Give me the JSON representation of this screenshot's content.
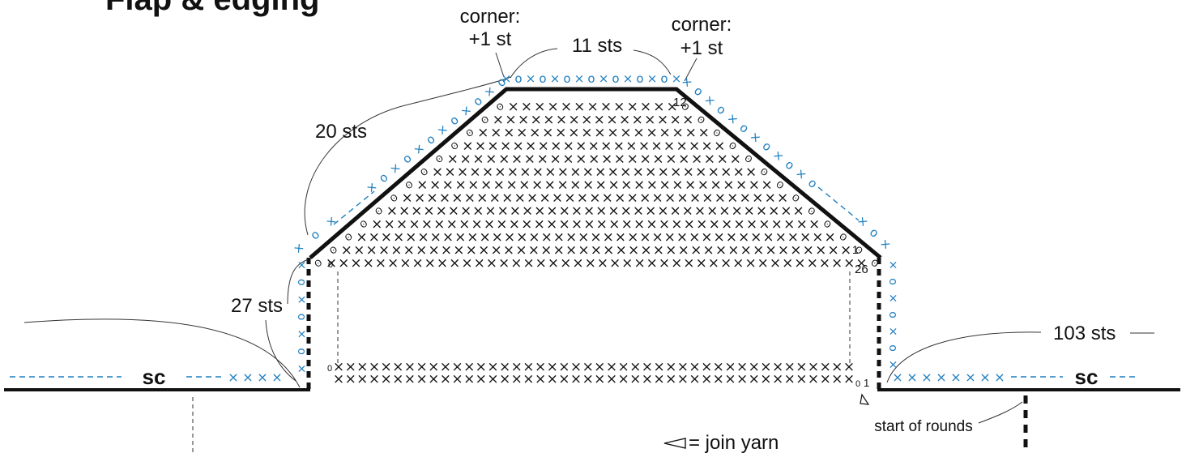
{
  "title": "Flap & edging",
  "labels": {
    "corner_left": [
      "corner:",
      "+1 st"
    ],
    "corner_right": [
      "corner:",
      "+1 st"
    ],
    "sts_top": "11 sts",
    "sts_diag": "20 sts",
    "sts_side": "27 sts",
    "sts_right": "103 sts",
    "sc_left": "sc",
    "sc_right": "sc",
    "row_num_12": "12",
    "row_num_1": "1",
    "row_num_26": "26",
    "row_num_0a": "0",
    "row_num_0b": "0",
    "row_num_0c": "0",
    "start_rounds": "start of rounds",
    "legend_text": "= join yarn"
  },
  "colors": {
    "line": "#111111",
    "accent": "#1f7fc0"
  },
  "symbols": {
    "sc": "×",
    "ch": "o",
    "join": "◁"
  }
}
